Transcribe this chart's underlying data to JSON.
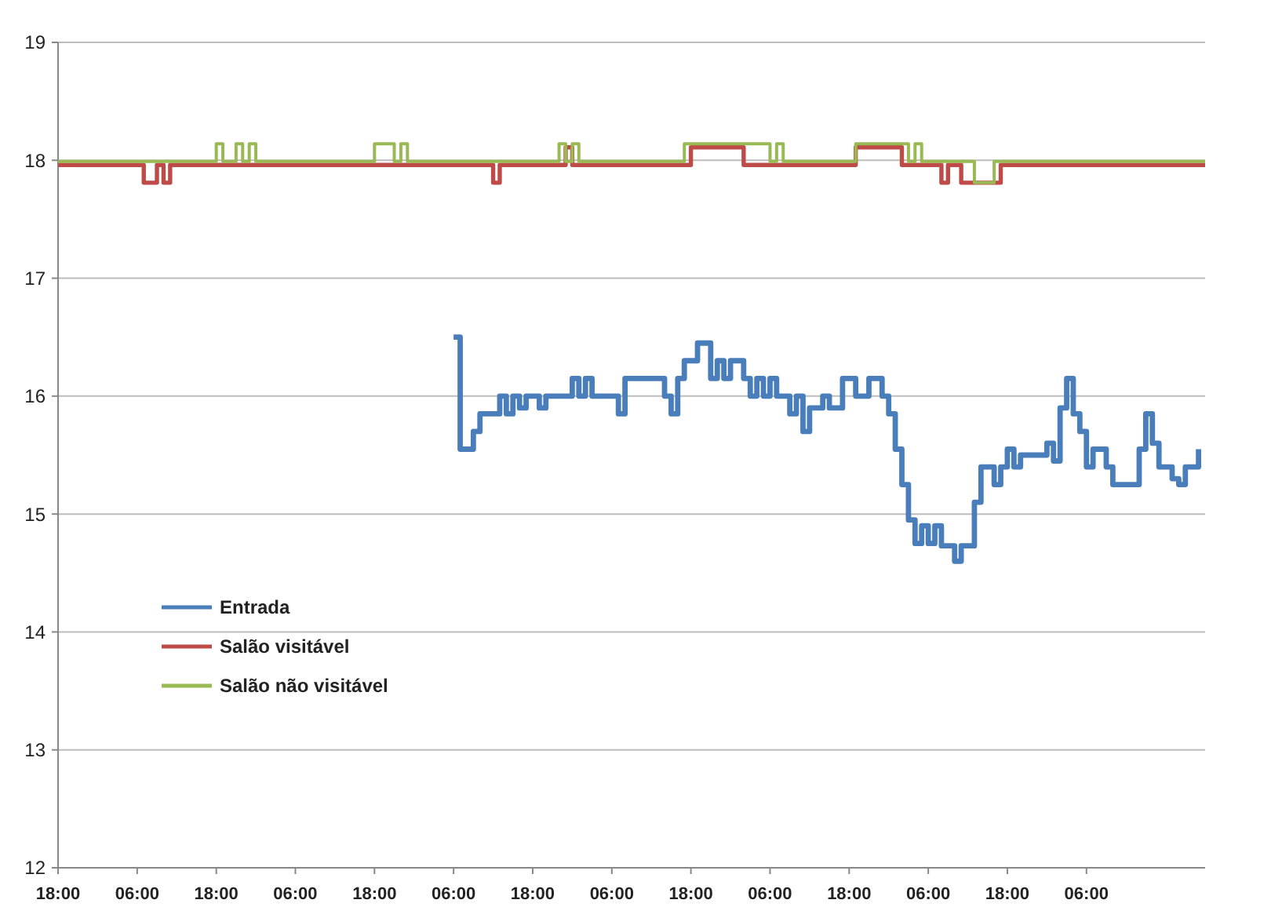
{
  "chart_data": {
    "type": "step",
    "ylim": [
      12,
      19
    ],
    "yticks": [
      12,
      13,
      14,
      15,
      16,
      17,
      18,
      19
    ],
    "categories": [
      "18:00",
      null,
      null,
      null,
      null,
      null,
      null,
      null,
      null,
      null,
      null,
      null,
      "06:00",
      null,
      null,
      null,
      null,
      null,
      null,
      null,
      null,
      null,
      null,
      null,
      "18:00",
      null,
      null,
      null,
      null,
      null,
      null,
      null,
      null,
      null,
      null,
      null,
      "06:00",
      null,
      null,
      null,
      null,
      null,
      null,
      null,
      null,
      null,
      null,
      null,
      "18:00",
      null,
      null,
      null,
      null,
      null,
      null,
      null,
      null,
      null,
      null,
      null,
      "06:00",
      null,
      null,
      null,
      null,
      null,
      null,
      null,
      null,
      null,
      null,
      null,
      "18:00",
      null,
      null,
      null,
      null,
      null,
      null,
      null,
      null,
      null,
      null,
      null,
      "06:00",
      null,
      null,
      null,
      null,
      null,
      null,
      null,
      null,
      null,
      null,
      null,
      "18:00",
      null,
      null,
      null,
      null,
      null,
      null,
      null,
      null,
      null,
      null,
      null,
      "06:00",
      null,
      null,
      null,
      null,
      null,
      null,
      null,
      null,
      null,
      null,
      null,
      "18:00",
      null,
      null,
      null,
      null,
      null,
      null,
      null,
      null,
      null,
      null,
      null,
      "06:00",
      null,
      null,
      null,
      null,
      null,
      null,
      null,
      null,
      null,
      null,
      null,
      "18:00",
      null,
      null,
      null,
      null,
      null,
      null,
      null,
      null,
      null,
      null,
      null,
      "06:00",
      null,
      null,
      null,
      null,
      null,
      null,
      null,
      null,
      null,
      null,
      null,
      null,
      null,
      null,
      null,
      null,
      null,
      null
    ],
    "grid": "y",
    "legend": "left",
    "marker": "none",
    "line_style": "solid",
    "series": [
      {
        "name": "Entrada",
        "color": "#4a7ebb",
        "values": [
          null,
          null,
          null,
          null,
          null,
          null,
          null,
          null,
          null,
          null,
          null,
          null,
          null,
          null,
          null,
          null,
          null,
          null,
          null,
          null,
          null,
          null,
          null,
          null,
          null,
          null,
          null,
          null,
          null,
          null,
          null,
          null,
          null,
          null,
          null,
          null,
          null,
          null,
          null,
          null,
          null,
          null,
          null,
          null,
          null,
          null,
          null,
          null,
          null,
          null,
          null,
          null,
          null,
          null,
          null,
          null,
          null,
          null,
          null,
          null,
          16.5,
          15.55,
          15.55,
          15.7,
          15.85,
          15.85,
          15.85,
          16.0,
          15.85,
          16.0,
          15.9,
          16.0,
          16.0,
          15.9,
          16.0,
          16.0,
          16.0,
          16.0,
          16.15,
          16.0,
          16.15,
          16.0,
          16.0,
          16.0,
          16.0,
          15.85,
          16.15,
          16.15,
          16.15,
          16.15,
          16.15,
          16.15,
          16.0,
          15.85,
          16.15,
          16.3,
          16.3,
          16.45,
          16.45,
          16.15,
          16.3,
          16.15,
          16.3,
          16.3,
          16.15,
          16.0,
          16.15,
          16.0,
          16.15,
          16.0,
          16.0,
          15.85,
          16.0,
          15.7,
          15.9,
          15.9,
          16.0,
          15.9,
          15.9,
          16.15,
          16.15,
          16.0,
          16.0,
          16.15,
          16.15,
          16.0,
          15.85,
          15.55,
          15.25,
          14.95,
          14.75,
          14.9,
          14.75,
          14.9,
          14.73,
          14.73,
          14.6,
          14.73,
          14.73,
          15.1,
          15.4,
          15.4,
          15.25,
          15.4,
          15.55,
          15.4,
          15.5,
          15.5,
          15.5,
          15.5,
          15.6,
          15.45,
          15.9,
          16.15,
          15.85,
          15.7,
          15.4,
          15.55,
          15.55,
          15.4,
          15.25,
          15.25,
          15.25,
          15.25,
          15.55,
          15.85,
          15.6,
          15.4,
          15.4,
          15.3,
          15.25,
          15.4,
          15.4,
          15.55,
          null
        ]
      },
      {
        "name": "Salão visitável",
        "color": "#be4b48",
        "values": [
          17.96,
          17.96,
          17.96,
          17.96,
          17.96,
          17.96,
          17.96,
          17.96,
          17.96,
          17.96,
          17.96,
          17.96,
          17.96,
          17.81,
          17.81,
          17.96,
          17.81,
          17.96,
          17.96,
          17.96,
          17.96,
          17.96,
          17.96,
          17.96,
          17.96,
          17.96,
          17.96,
          17.96,
          17.96,
          17.96,
          17.96,
          17.96,
          17.96,
          17.96,
          17.96,
          17.96,
          17.96,
          17.96,
          17.96,
          17.96,
          17.96,
          17.96,
          17.96,
          17.96,
          17.96,
          17.96,
          17.96,
          17.96,
          17.96,
          17.96,
          17.96,
          17.96,
          17.96,
          17.96,
          17.96,
          17.96,
          17.96,
          17.96,
          17.96,
          17.96,
          17.96,
          17.96,
          17.96,
          17.96,
          17.96,
          17.96,
          17.81,
          17.96,
          17.96,
          17.96,
          17.96,
          17.96,
          17.96,
          17.96,
          17.96,
          17.96,
          17.96,
          18.11,
          17.96,
          17.96,
          17.96,
          17.96,
          17.96,
          17.96,
          17.96,
          17.96,
          17.96,
          17.96,
          17.96,
          17.96,
          17.96,
          17.96,
          17.96,
          17.96,
          17.96,
          17.96,
          18.11,
          18.11,
          18.11,
          18.11,
          18.11,
          18.11,
          18.11,
          18.11,
          17.96,
          17.96,
          17.96,
          17.96,
          17.96,
          17.96,
          17.96,
          17.96,
          17.96,
          17.96,
          17.96,
          17.96,
          17.96,
          17.96,
          17.96,
          17.96,
          17.96,
          18.11,
          18.11,
          18.11,
          18.11,
          18.11,
          18.11,
          18.11,
          17.96,
          17.96,
          17.96,
          17.96,
          17.96,
          17.96,
          17.81,
          17.96,
          17.96,
          17.81,
          17.81,
          17.81,
          17.81,
          17.81,
          17.81,
          17.96,
          17.96,
          17.96,
          17.96,
          17.96,
          17.96,
          17.96,
          17.96,
          17.96,
          17.96,
          17.96,
          17.96,
          17.96,
          17.96,
          17.96,
          17.96,
          17.96,
          17.96,
          17.96,
          17.96,
          17.96,
          17.96,
          17.96,
          17.96,
          17.96,
          17.96,
          17.96,
          17.96,
          17.96,
          17.96,
          17.96,
          17.96
        ]
      },
      {
        "name": "Salão não visitável",
        "color": "#98b954",
        "values": [
          17.99,
          17.99,
          17.99,
          17.99,
          17.99,
          17.99,
          17.99,
          17.99,
          17.99,
          17.99,
          17.99,
          17.99,
          17.99,
          17.99,
          17.99,
          17.99,
          17.99,
          17.99,
          17.99,
          17.99,
          17.99,
          17.99,
          17.99,
          17.99,
          18.14,
          17.99,
          17.99,
          18.14,
          17.99,
          18.14,
          17.99,
          17.99,
          17.99,
          17.99,
          17.99,
          17.99,
          17.99,
          17.99,
          17.99,
          17.99,
          17.99,
          17.99,
          17.99,
          17.99,
          17.99,
          17.99,
          17.99,
          17.99,
          18.14,
          18.14,
          18.14,
          17.99,
          18.14,
          17.99,
          17.99,
          17.99,
          17.99,
          17.99,
          17.99,
          17.99,
          17.99,
          17.99,
          17.99,
          17.99,
          17.99,
          17.99,
          17.99,
          17.99,
          17.99,
          17.99,
          17.99,
          17.99,
          17.99,
          17.99,
          17.99,
          17.99,
          18.14,
          17.99,
          18.14,
          17.99,
          17.99,
          17.99,
          17.99,
          17.99,
          17.99,
          17.99,
          17.99,
          17.99,
          17.99,
          17.99,
          17.99,
          17.99,
          17.99,
          17.99,
          17.99,
          18.14,
          18.14,
          18.14,
          18.14,
          18.14,
          18.14,
          18.14,
          18.14,
          18.14,
          18.14,
          18.14,
          18.14,
          18.14,
          17.99,
          18.14,
          17.99,
          17.99,
          17.99,
          17.99,
          17.99,
          17.99,
          17.99,
          17.99,
          17.99,
          17.99,
          17.99,
          18.14,
          18.14,
          18.14,
          18.14,
          18.14,
          18.14,
          18.14,
          18.14,
          17.99,
          18.14,
          17.99,
          17.99,
          17.99,
          17.99,
          17.99,
          17.99,
          17.99,
          17.99,
          17.81,
          17.81,
          17.81,
          17.99,
          17.99,
          17.99,
          17.99,
          17.99,
          17.99,
          17.99,
          17.99,
          17.99,
          17.99,
          17.99,
          17.99,
          17.99,
          17.99,
          17.99,
          17.99,
          17.99,
          17.99,
          17.99,
          17.99,
          17.99,
          17.99,
          17.99,
          17.99,
          17.99,
          17.99,
          17.99,
          17.99,
          17.99,
          17.99,
          17.99,
          17.99,
          17.99
        ]
      }
    ]
  }
}
